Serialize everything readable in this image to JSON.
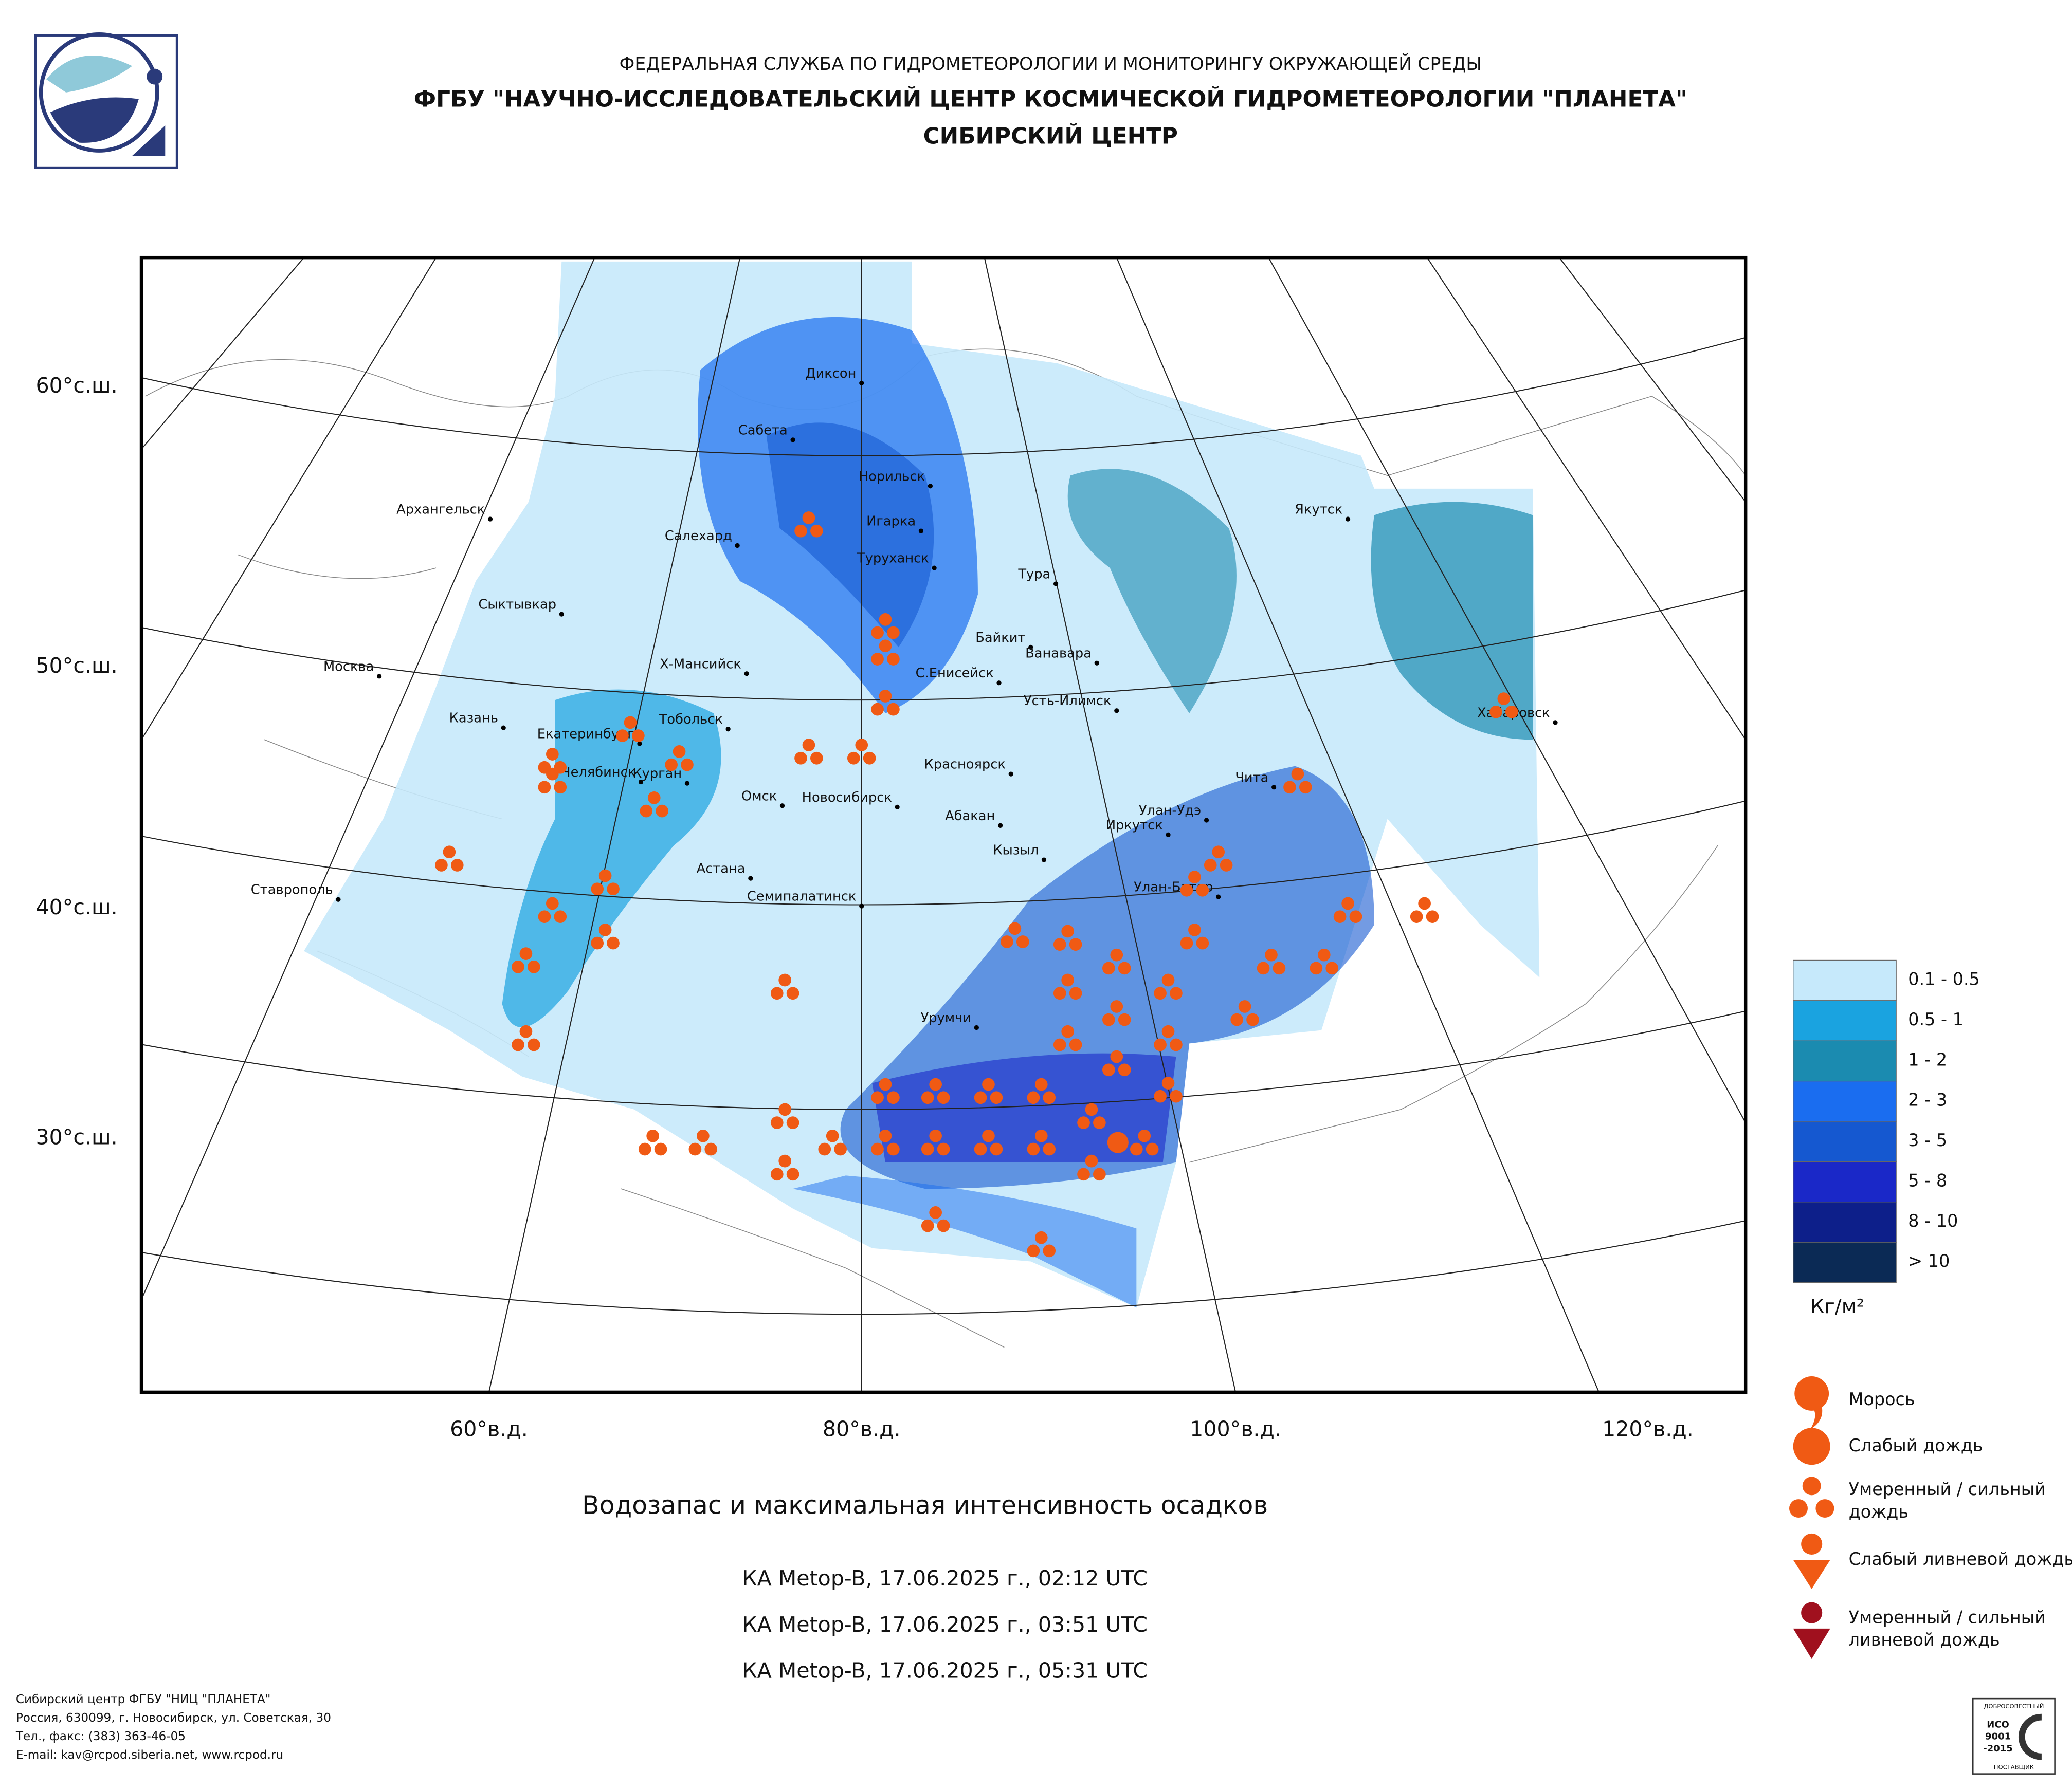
{
  "header": {
    "line1": "ФЕДЕРАЛЬНАЯ СЛУЖБА ПО ГИДРОМЕТЕОРОЛОГИИ И МОНИТОРИНГУ ОКРУЖАЮЩЕЙ СРЕДЫ",
    "line2": "ФГБУ \"НАУЧНО-ИССЛЕДОВАТЕЛЬСКИЙ ЦЕНТР КОСМИЧЕСКОЙ ГИДРОМЕТЕОРОЛОГИИ \"ПЛАНЕТА\"",
    "line3": "СИБИРСКИЙ ЦЕНТР"
  },
  "map": {
    "cities": [
      "Диксон",
      "Сабета",
      "Норильск",
      "Архангельск",
      "Игарка",
      "Салехард",
      "Туруханск",
      "Тура",
      "Якутск",
      "Сыктывкар",
      "Байкит",
      "Ванавара",
      "Москва",
      "Х-Мансийск",
      "С.Енисейск",
      "Усть-Илимск",
      "Хабаровск",
      "Казань",
      "Тобольск",
      "Екатеринбург",
      "Челябинск",
      "Курган",
      "Красноярск",
      "Чита",
      "Омск",
      "Новосибирск",
      "Абакан",
      "Улан-Удэ",
      "Иркутск",
      "Кызыл",
      "Астана",
      "Ставрополь",
      "Улан-Батор",
      "Семипалатинск",
      "Урумчи"
    ],
    "lat_labels": [
      "60°с.ш.",
      "50°с.ш.",
      "40°с.ш.",
      "30°с.ш."
    ],
    "lon_labels": [
      "60°в.д.",
      "80°в.д.",
      "100°в.д.",
      "120°в.д."
    ]
  },
  "legend": {
    "classes": [
      {
        "label": "0.1 - 0.5",
        "color": "#c6e9fb"
      },
      {
        "label": "0.5 - 1",
        "color": "#1aa3e0"
      },
      {
        "label": "1 - 2",
        "color": "#1b8bb0"
      },
      {
        "label": "2 - 3",
        "color": "#1a6df0"
      },
      {
        "label": "3 - 5",
        "color": "#1558d0"
      },
      {
        "label": "5 - 8",
        "color": "#1a28c8"
      },
      {
        "label": "8 - 10",
        "color": "#0d1f8a"
      },
      {
        "label": "> 10",
        "color": "#0b2a55"
      }
    ],
    "unit": "Кг/м²",
    "symbols": [
      "Морось",
      "Слабый дождь",
      "Умеренный / сильный дождь",
      "Слабый ливневой дождь",
      "Умеренный / сильный ливневой дождь"
    ]
  },
  "caption": {
    "title": "Водозапас и максимальная интенсивность осадков",
    "passes": [
      "КА Metop-B, 17.06.2025 г., 02:12 UTC",
      "КА Metop-B, 17.06.2025 г., 03:51 UTC",
      "КА Metop-B, 17.06.2025 г., 05:31 UTC"
    ]
  },
  "footer": {
    "lines": [
      "Сибирский центр ФГБУ \"НИЦ \"ПЛАНЕТА\"",
      "Россия, 630099, г. Новосибирск, ул. Советская, 30",
      "Тел., факс: (383) 363-46-05",
      "E-mail: kav@rcpod.siberia.net, www.rcpod.ru"
    ]
  },
  "badge": {
    "top": "ДОБРОСОВЕСТНЫЙ",
    "name": "ИСО",
    "code": "9001",
    "year": "-2015",
    "bottom": "ПОСТАВЩИК"
  }
}
